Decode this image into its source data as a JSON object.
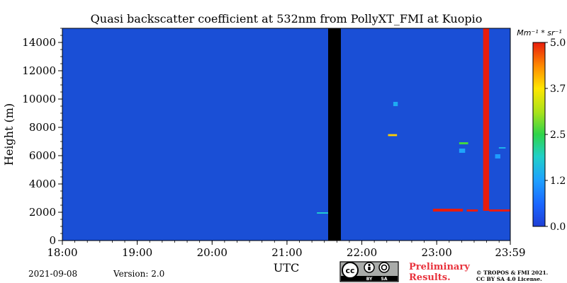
{
  "chart_data": {
    "type": "heatmap",
    "title": "Quasi backscatter coefficient at 532nm from PollyXT_FMI at Kuopio",
    "xlabel": "UTC",
    "ylabel": "Height (m)",
    "x_ticks": [
      "18:00",
      "19:00",
      "20:00",
      "21:00",
      "22:00",
      "23:00",
      "23:59"
    ],
    "x_tick_hours": [
      18,
      19,
      20,
      21,
      22,
      23,
      23.983
    ],
    "xlim": [
      18,
      23.983
    ],
    "y_ticks": [
      0,
      2000,
      4000,
      6000,
      8000,
      10000,
      12000,
      14000
    ],
    "ylim": [
      0,
      15000
    ],
    "colorbar": {
      "label": "Mm⁻¹ * sr⁻¹",
      "ticks": [
        "0.0",
        "1.2",
        "2.5",
        "3.7",
        "5.0"
      ],
      "tick_values": [
        0.0,
        1.25,
        2.5,
        3.75,
        5.0
      ],
      "range": [
        0,
        5.0
      ]
    },
    "background_value": 0.3,
    "no_data_periods": [
      {
        "start": 21.55,
        "end": 21.72
      }
    ],
    "features": [
      {
        "t_start": 21.4,
        "t_end": 21.55,
        "h_bottom": 1900,
        "h_top": 2000,
        "value": 1.8
      },
      {
        "t_start": 22.35,
        "t_end": 22.47,
        "h_bottom": 7380,
        "h_top": 7520,
        "value": 3.9
      },
      {
        "t_start": 22.42,
        "t_end": 22.48,
        "h_bottom": 9500,
        "h_top": 9800,
        "value": 1.4
      },
      {
        "t_start": 23.3,
        "t_end": 23.38,
        "h_bottom": 6200,
        "h_top": 6500,
        "value": 1.3
      },
      {
        "t_start": 23.3,
        "t_end": 23.42,
        "h_bottom": 6800,
        "h_top": 6950,
        "value": 2.6
      },
      {
        "t_start": 23.78,
        "t_end": 23.85,
        "h_bottom": 5800,
        "h_top": 6100,
        "value": 1.2
      },
      {
        "t_start": 23.83,
        "t_end": 23.92,
        "h_bottom": 6500,
        "h_top": 6600,
        "value": 1.5
      },
      {
        "t_start": 22.95,
        "t_end": 23.35,
        "h_bottom": 2050,
        "h_top": 2250,
        "value": 5.0
      },
      {
        "t_start": 23.4,
        "t_end": 23.55,
        "h_bottom": 2050,
        "h_top": 2200,
        "value": 5.0
      },
      {
        "t_start": 23.7,
        "t_end": 23.98,
        "h_bottom": 2050,
        "h_top": 2200,
        "value": 5.0
      },
      {
        "t_start": 23.62,
        "t_end": 23.7,
        "h_bottom": 2100,
        "h_top": 15000,
        "value": 5.0
      }
    ]
  },
  "footer": {
    "date": "2021-09-08",
    "version": "Version: 2.0",
    "preliminary_line1": "Preliminary",
    "preliminary_line2": "Results.",
    "copyright_line1": "© TROPOS & FMI 2021.",
    "copyright_line2": "CC BY SA 4.0 License.",
    "license_badge": {
      "by": "BY",
      "sa": "SA"
    }
  },
  "colors": {
    "background_field": "#1a4fd6",
    "no_data": "#000000",
    "preliminary_text": "#e8323c"
  }
}
